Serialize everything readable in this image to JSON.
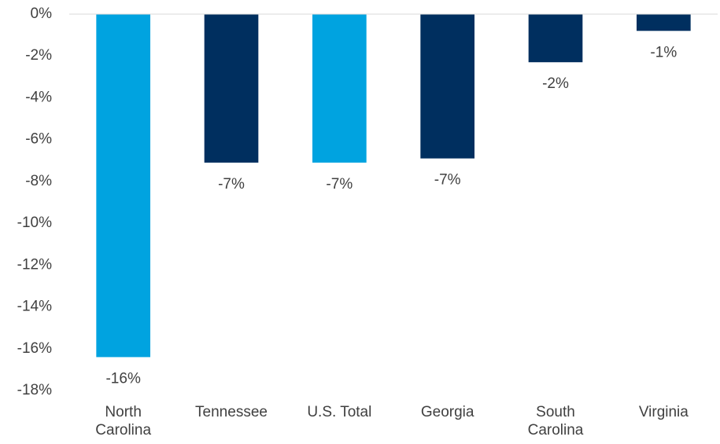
{
  "chart_data": {
    "type": "bar",
    "categories": [
      "North Carolina",
      "Tennessee",
      "U.S. Total",
      "Georgia",
      "South Carolina",
      "Virginia"
    ],
    "values": [
      -16.4,
      -7.1,
      -7.1,
      -6.9,
      -2.3,
      -0.8
    ],
    "value_labels": [
      "-16%",
      "-7%",
      "-7%",
      "-7%",
      "-2%",
      "-1%"
    ],
    "colors": [
      "#00a3e0",
      "#002f5f",
      "#00a3e0",
      "#002f5f",
      "#002f5f",
      "#002f5f"
    ],
    "ylim": [
      -18,
      0
    ],
    "yticks": [
      {
        "value": 0,
        "label": "0%"
      },
      {
        "value": -2,
        "label": "-2%"
      },
      {
        "value": -4,
        "label": "-4%"
      },
      {
        "value": -6,
        "label": "-6%"
      },
      {
        "value": -8,
        "label": "-8%"
      },
      {
        "value": -10,
        "label": "-10%"
      },
      {
        "value": -12,
        "label": "-12%"
      },
      {
        "value": -14,
        "label": "-14%"
      },
      {
        "value": -16,
        "label": "-16%"
      },
      {
        "value": -18,
        "label": "-18%"
      }
    ],
    "grid": false
  }
}
